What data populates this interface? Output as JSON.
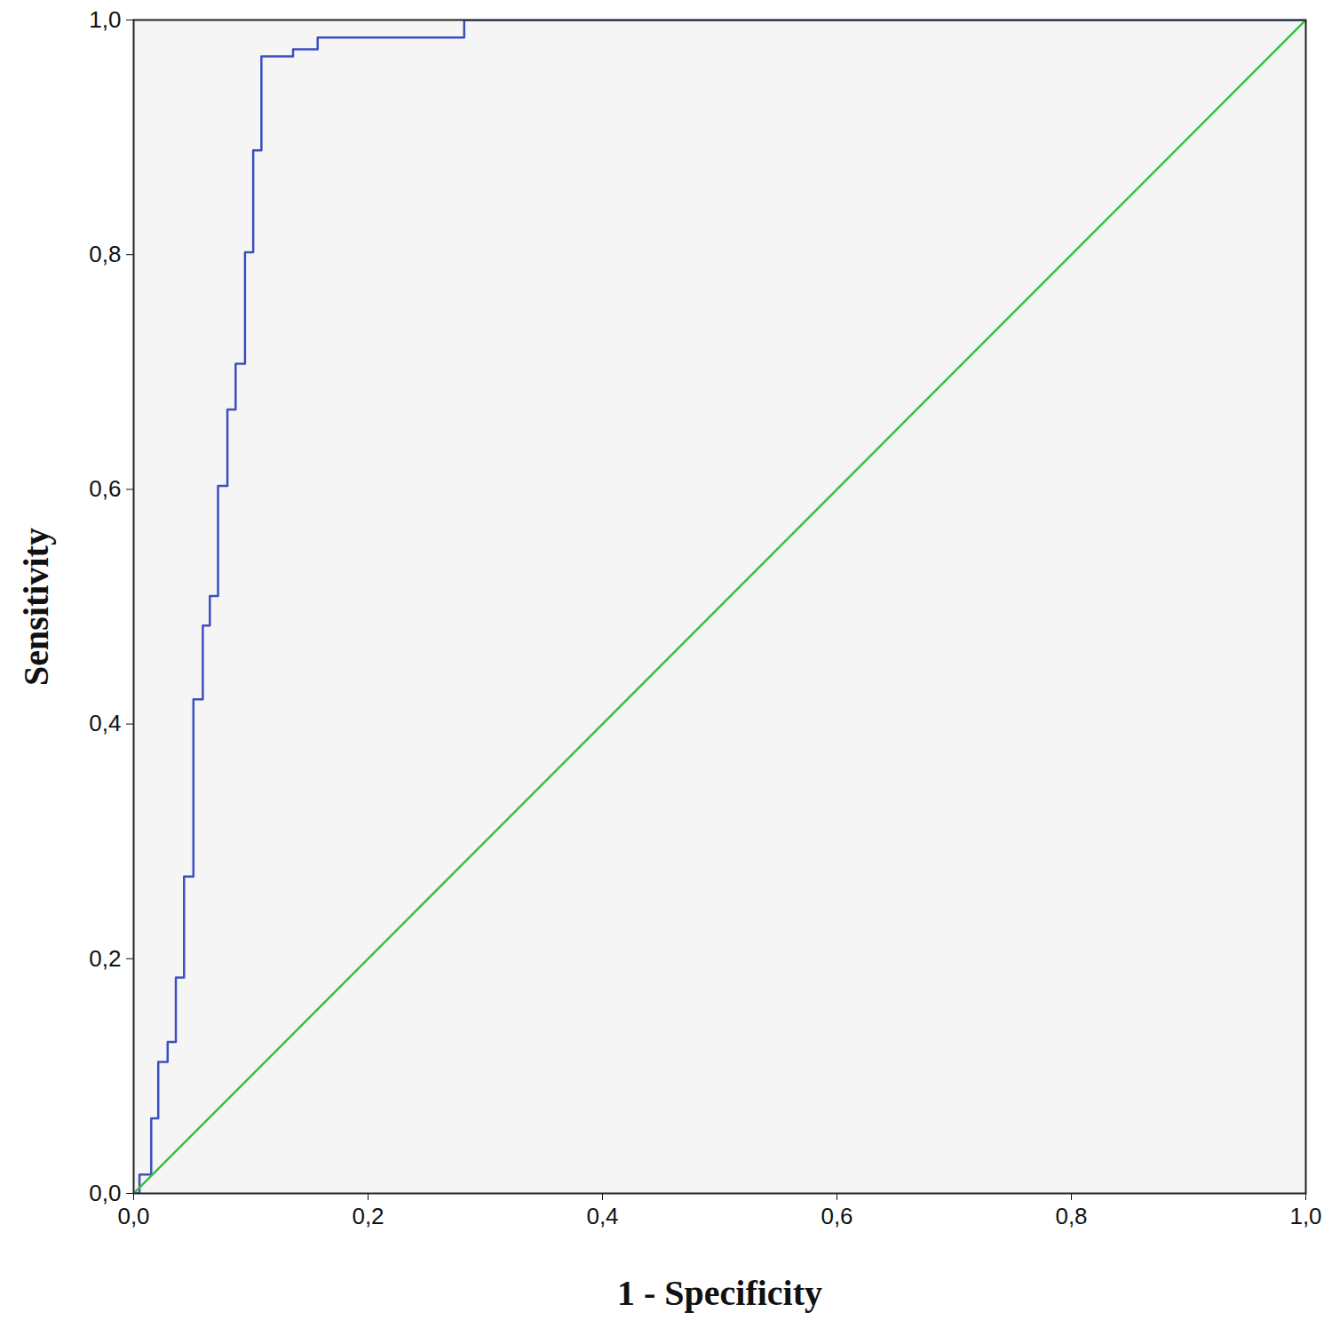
{
  "chart_data": {
    "type": "line",
    "x_label": "1 - Specificity",
    "y_label": "Sensitivity",
    "xlim": [
      0,
      1
    ],
    "ylim": [
      0,
      1
    ],
    "xticks": [
      {
        "value": 0,
        "label": "0,0"
      },
      {
        "value": 0.2,
        "label": "0,2"
      },
      {
        "value": 0.4,
        "label": "0,4"
      },
      {
        "value": 0.6,
        "label": "0,6"
      },
      {
        "value": 0.8,
        "label": "0,8"
      },
      {
        "value": 1,
        "label": "1,0"
      }
    ],
    "yticks": [
      {
        "value": 0,
        "label": "0,0"
      },
      {
        "value": 0.2,
        "label": "0,2"
      },
      {
        "value": 0.4,
        "label": "0,4"
      },
      {
        "value": 0.6,
        "label": "0,6"
      },
      {
        "value": 0.8,
        "label": "0,8"
      },
      {
        "value": 1,
        "label": "1,0"
      }
    ],
    "grid": false,
    "series": [
      {
        "color": "#3c4fbf",
        "x": [
          0,
          0.005,
          0.005,
          0.015,
          0.015,
          0.021,
          0.021,
          0.029,
          0.029,
          0.036,
          0.036,
          0.043,
          0.043,
          0.051,
          0.051,
          0.059,
          0.059,
          0.065,
          0.065,
          0.072,
          0.072,
          0.08,
          0.08,
          0.087,
          0.087,
          0.095,
          0.095,
          0.102,
          0.102,
          0.109,
          0.109,
          0.136,
          0.136,
          0.157,
          0.157,
          0.282,
          0.282,
          1
        ],
        "values": [
          0,
          0,
          0.016,
          0.016,
          0.064,
          0.064,
          0.112,
          0.112,
          0.129,
          0.129,
          0.184,
          0.184,
          0.27,
          0.27,
          0.421,
          0.421,
          0.484,
          0.484,
          0.509,
          0.509,
          0.603,
          0.603,
          0.668,
          0.668,
          0.707,
          0.707,
          0.802,
          0.802,
          0.889,
          0.889,
          0.969,
          0.969,
          0.975,
          0.975,
          0.985,
          0.985,
          1,
          1
        ]
      },
      {
        "color": "#35c23e",
        "x": [
          0,
          1
        ],
        "values": [
          0,
          1
        ]
      }
    ]
  }
}
